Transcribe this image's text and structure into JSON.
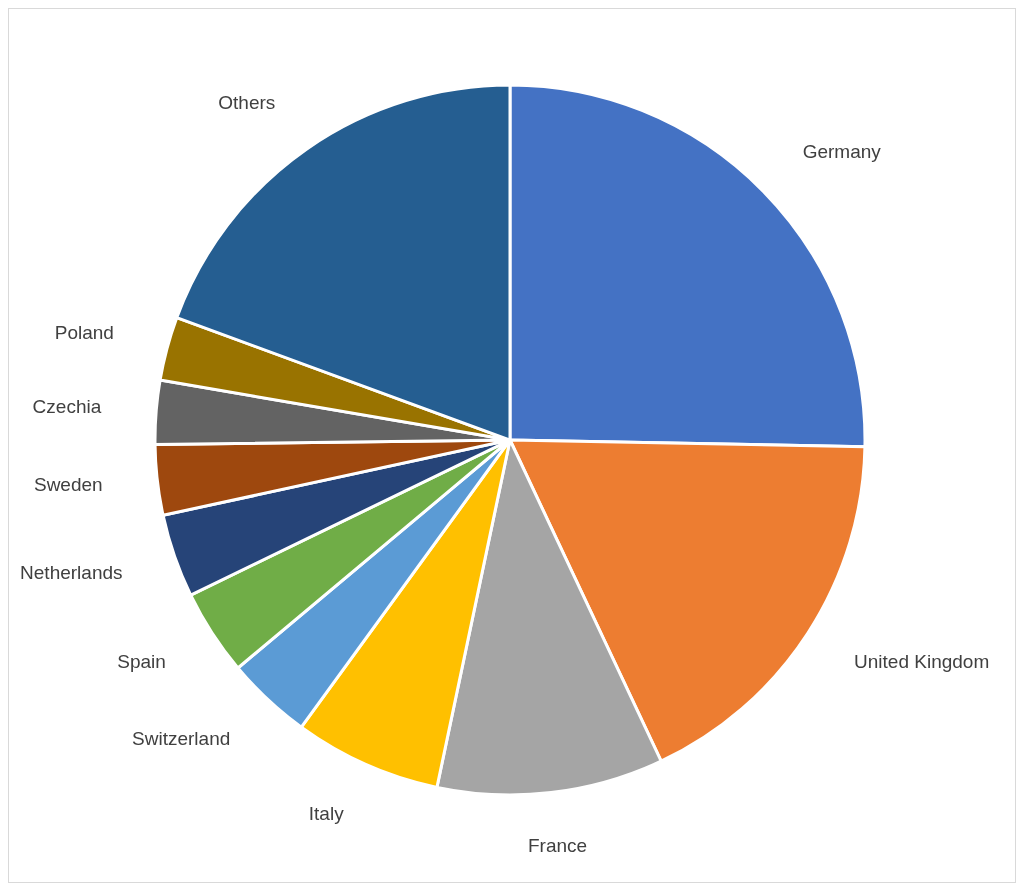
{
  "chart_data": {
    "type": "pie",
    "categories": [
      "Germany",
      "United Kingdom",
      "France",
      "Italy",
      "Switzerland",
      "Spain",
      "Netherlands",
      "Sweden",
      "Czechia",
      "Poland",
      "Others"
    ],
    "values": [
      25.3,
      17.7,
      10.3,
      6.7,
      3.9,
      3.9,
      3.8,
      3.2,
      2.9,
      2.9,
      19.4
    ],
    "colors": [
      "#4472c4",
      "#ed7d31",
      "#a5a5a5",
      "#ffc000",
      "#5b9bd5",
      "#70ad47",
      "#264478",
      "#9e480e",
      "#636363",
      "#997300",
      "#255e91"
    ]
  }
}
